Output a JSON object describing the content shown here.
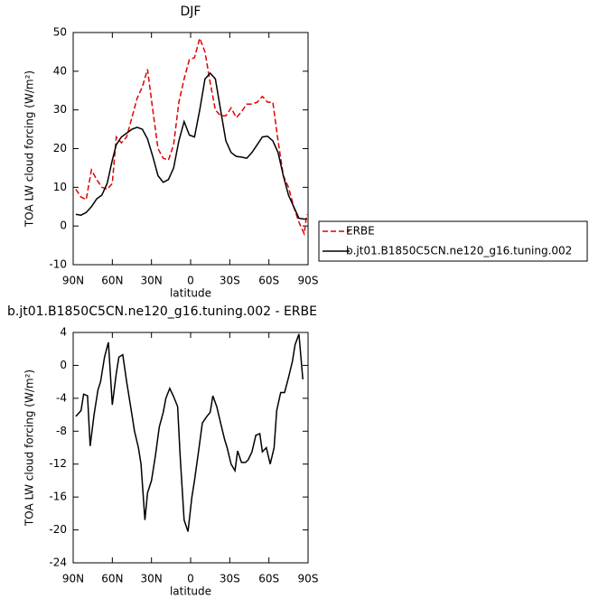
{
  "chart_data": [
    {
      "type": "line",
      "title": "DJF",
      "xlabel": "latitude",
      "ylabel": "TOA LW cloud forcing (W/m²)",
      "x": [
        88,
        84,
        80,
        76,
        72,
        68,
        64,
        60,
        57,
        53,
        49,
        45,
        41,
        37,
        33,
        29,
        25,
        21,
        17,
        13,
        9,
        5,
        1,
        -3,
        -7,
        -11,
        -15,
        -19,
        -23,
        -27,
        -31,
        -35,
        -39,
        -43,
        -47,
        -51,
        -55,
        -59,
        -63,
        -67,
        -71,
        -75,
        -79,
        -83,
        -87,
        -89
      ],
      "series": [
        {
          "name": "ERBE",
          "color": "#e00000",
          "dash": true,
          "values": [
            9.5,
            7.5,
            6.8,
            14.5,
            12,
            10,
            9.5,
            11,
            23,
            21.5,
            23,
            28,
            33,
            36,
            40.5,
            30,
            20,
            17.5,
            17,
            21,
            32,
            38,
            43,
            43.5,
            48.5,
            45,
            37,
            30,
            28.5,
            28.5,
            30.5,
            28,
            29.5,
            31.5,
            31.5,
            32,
            33.5,
            32,
            32,
            22,
            13,
            10,
            5,
            1,
            -2,
            3
          ]
        },
        {
          "name": "b.jt01.B1850C5CN.ne120_g16.tuning.002",
          "color": "#000000",
          "dash": false,
          "values": [
            3,
            2.8,
            3.5,
            5,
            7,
            8,
            11,
            17,
            21,
            23,
            24,
            25,
            25.5,
            25,
            22.5,
            18,
            13,
            11.3,
            12,
            15,
            22,
            27,
            23.5,
            23,
            30,
            38,
            39.5,
            38,
            30,
            22,
            19,
            18,
            17.8,
            17.5,
            19,
            21,
            23,
            23.2,
            22,
            19,
            13,
            8,
            5,
            2,
            1.8,
            1.8
          ]
        }
      ],
      "xlim": [
        90,
        -90
      ],
      "xticks": [
        {
          "value": 90,
          "label": "90N"
        },
        {
          "value": 60,
          "label": "60N"
        },
        {
          "value": 30,
          "label": "30N"
        },
        0,
        {
          "value": -30,
          "label": "30S"
        },
        {
          "value": -60,
          "label": "60S"
        },
        {
          "value": -90,
          "label": "90S"
        }
      ],
      "ylim": [
        -10,
        50
      ],
      "yticks": [
        -10,
        0,
        10,
        20,
        30,
        40,
        50
      ],
      "legend": "right"
    },
    {
      "type": "line",
      "title": "b.jt01.B1850C5CN.ne120_g16.tuning.002 - ERBE",
      "xlabel": "latitude",
      "ylabel": "TOA LW cloud forcing (W/m²)",
      "x": [
        88,
        84,
        82,
        79,
        77,
        74,
        71,
        69,
        66,
        63,
        60,
        57,
        55,
        52,
        49,
        46,
        43,
        40,
        38,
        35,
        33,
        30,
        27,
        24,
        21,
        19,
        16,
        13,
        10,
        8,
        5,
        2,
        -1,
        -3,
        -6,
        -9,
        -12,
        -15,
        -17,
        -20,
        -23,
        -26,
        -28,
        -31,
        -34,
        -36,
        -39,
        -42,
        -44,
        -47,
        -50,
        -53,
        -55,
        -58,
        -61,
        -64,
        -66,
        -69,
        -72,
        -75,
        -78,
        -80,
        -83,
        -86
      ],
      "color": "#000000",
      "values": [
        -6.2,
        -5.5,
        -3.5,
        -3.7,
        -9.8,
        -6,
        -3,
        -2,
        1,
        2.8,
        -4.8,
        -1,
        1,
        1.3,
        -2,
        -5,
        -8,
        -10,
        -12,
        -18.8,
        -15.5,
        -14,
        -11,
        -7.5,
        -5.7,
        -4,
        -2.8,
        -3.8,
        -5,
        -11,
        -18.8,
        -20.2,
        -16,
        -14,
        -10.5,
        -7,
        -6.3,
        -5.7,
        -3.7,
        -5,
        -7,
        -9,
        -10,
        -12,
        -12.8,
        -10.4,
        -11.8,
        -11.8,
        -11.5,
        -10.5,
        -8.5,
        -8.3,
        -10.5,
        -10,
        -12,
        -10,
        -5.5,
        -3.3,
        -3.3,
        -1.5,
        0.5,
        2.5,
        3.8,
        -1.7
      ],
      "xlim": [
        90,
        -90
      ],
      "xticks": [
        {
          "value": 90,
          "label": "90N"
        },
        {
          "value": 60,
          "label": "60N"
        },
        {
          "value": 30,
          "label": "30N"
        },
        0,
        {
          "value": -30,
          "label": "30S"
        },
        {
          "value": -60,
          "label": "60S"
        },
        {
          "value": -90,
          "label": "90S"
        }
      ],
      "ylim": [
        -24,
        4
      ],
      "yticks": [
        -24,
        -20,
        -16,
        -12,
        -8,
        -4,
        0,
        4
      ]
    }
  ]
}
